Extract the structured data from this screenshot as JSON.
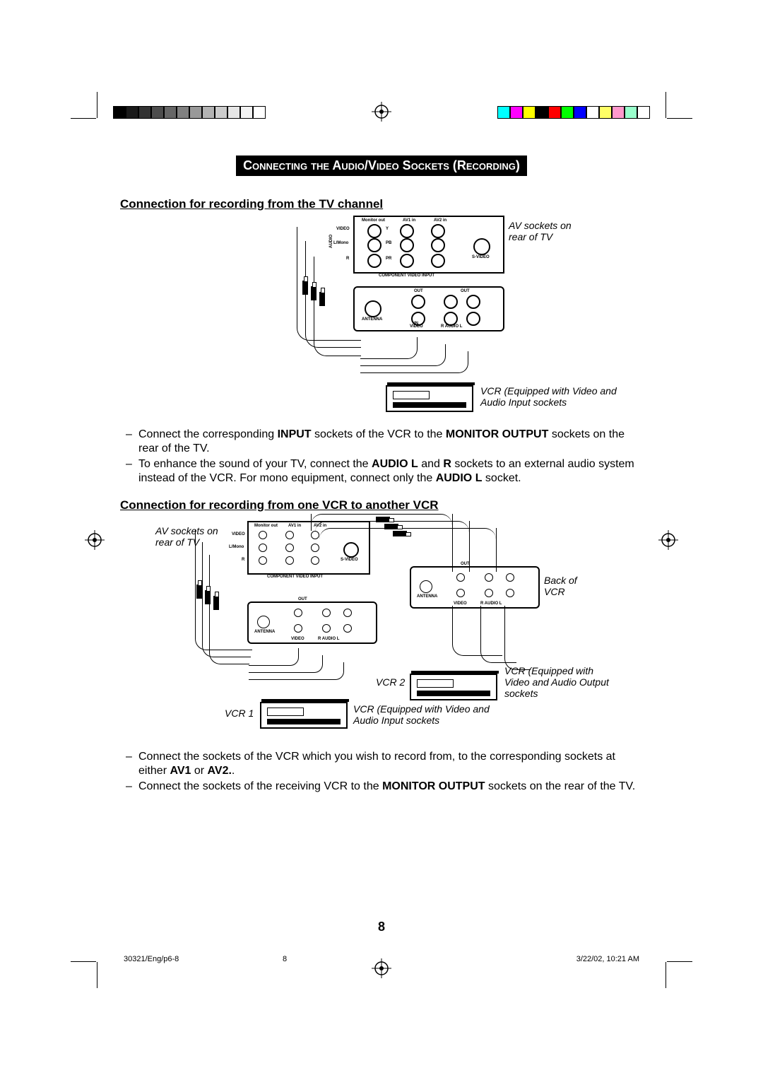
{
  "colorbars": {
    "left": [
      "#000000",
      "#1a1a1a",
      "#333333",
      "#4d4d4d",
      "#666666",
      "#808080",
      "#999999",
      "#b3b3b3",
      "#cccccc",
      "#e6e6e6",
      "#f2f2f2",
      "#ffffff"
    ],
    "right": [
      "#00ffff",
      "#ff00ff",
      "#ffff00",
      "#000000",
      "#ff0000",
      "#00ff00",
      "#0000ff",
      "#ffffff",
      "#ffff66",
      "#ff99cc",
      "#99ffcc",
      "#ffffff"
    ]
  },
  "banner": "Connecting the Audio/Video Sockets (Recording)",
  "section1": {
    "title": "Connection for recording from the TV channel",
    "panel_labels": {
      "monitor_out": "Monitor out",
      "av1_in": "AV1 in",
      "av2_in": "AV2 in",
      "video": "VIDEO",
      "lmono": "L/Mono",
      "audio": "AUDIO",
      "r": "R",
      "y": "Y",
      "pb": "PB",
      "pr": "PR",
      "component": "COMPONENT VIDEO INPUT",
      "svideo": "S-VIDEO",
      "out": "OUT",
      "antenna": "ANTENNA",
      "video2": "VIDEO",
      "audio_r": "R  AUDIO  L",
      "in": "IN"
    },
    "caption_tv": "AV sockets on rear of TV",
    "caption_vcr": "VCR (Equipped with Video and Audio Input sockets",
    "notes": [
      "Connect the corresponding <b>INPUT</b> sockets of the VCR to the <b>MONITOR OUTPUT</b> sockets on the rear of the TV.",
      "To enhance the sound of your TV, connect the <b>AUDIO L</b> and <b>R</b> sockets to an external audio system instead of the VCR. For mono equipment, connect only the <b>AUDIO L</b> socket."
    ]
  },
  "section2": {
    "title": "Connection for recording from one VCR to another VCR",
    "caption_tv": "AV sockets on rear of TV",
    "caption_back": "Back of VCR",
    "caption_vcr1_label": "VCR 1",
    "caption_vcr2_label": "VCR 2",
    "caption_vcr1": "VCR (Equipped with Video and Audio Input sockets",
    "caption_vcr2": "VCR (Equipped with Video and Audio Output sockets",
    "notes": [
      "Connect the sockets of the VCR which you wish to record from, to the corresponding sockets at either <b>AV1</b> or <b>AV2.</b>.",
      "Connect the sockets of the receiving VCR to the <b>MONITOR OUTPUT</b> sockets on the rear of the TV."
    ]
  },
  "page_number": "8",
  "footer": {
    "left": "30321/Eng/p6-8",
    "mid": "8",
    "right": "3/22/02, 10:21 AM"
  }
}
